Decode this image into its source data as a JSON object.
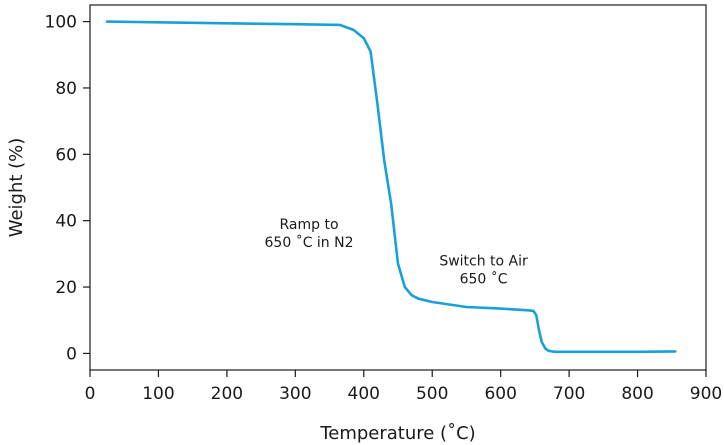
{
  "chart_data": {
    "type": "line",
    "title": "",
    "xlabel": "Temperature (˚C)",
    "ylabel": "Weight (%)",
    "xlim": [
      0,
      900
    ],
    "ylim": [
      -5,
      105
    ],
    "x_ticks": [
      0,
      100,
      200,
      300,
      400,
      500,
      600,
      700,
      800,
      900
    ],
    "y_ticks": [
      0,
      20,
      40,
      60,
      80,
      100
    ],
    "grid": false,
    "line_color": "#1aa0d8",
    "series": [
      {
        "x": [
          25,
          100,
          200,
          300,
          365,
          385,
          400,
          410,
          420,
          430,
          440,
          450,
          460,
          470,
          480,
          500,
          550,
          600,
          640,
          648,
          652,
          656,
          660,
          665,
          670,
          675,
          680,
          700,
          750,
          800,
          855
        ],
        "y": [
          100,
          99.8,
          99.5,
          99.2,
          99.0,
          97.5,
          95.0,
          91.0,
          75.0,
          58.0,
          45.0,
          27.0,
          20.0,
          17.5,
          16.5,
          15.5,
          14.0,
          13.5,
          13.0,
          12.8,
          11.5,
          7.0,
          3.5,
          1.5,
          0.8,
          0.6,
          0.5,
          0.5,
          0.5,
          0.5,
          0.6
        ]
      }
    ],
    "annotations": [
      {
        "lines": [
          "Ramp to",
          "650 ˚C in N2"
        ],
        "x": 320,
        "y": 37.5
      },
      {
        "lines": [
          "Switch to Air",
          "650 ˚C"
        ],
        "x": 575,
        "y": 26.5
      }
    ]
  }
}
